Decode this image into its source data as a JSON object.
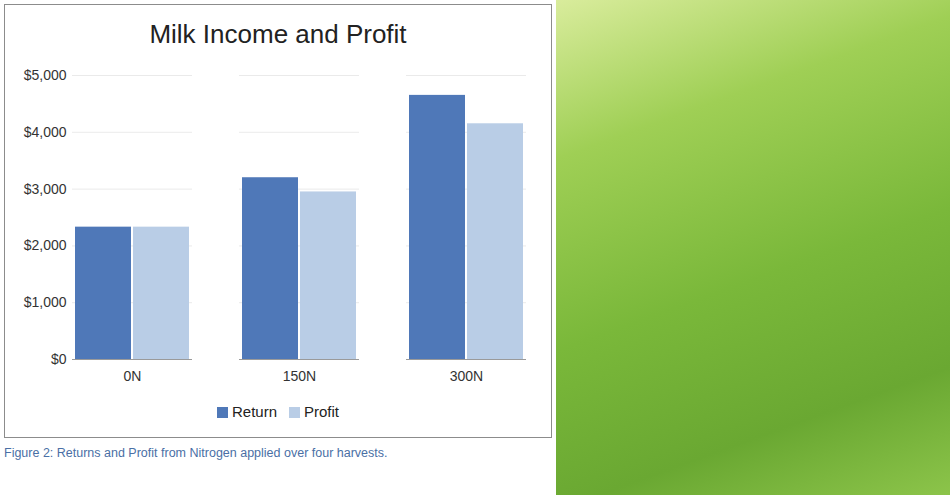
{
  "chart_data": {
    "type": "bar",
    "title": "Milk Income and Profit",
    "categories": [
      "0N",
      "150N",
      "300N"
    ],
    "series": [
      {
        "name": "Return",
        "color": "#4f78b8",
        "values": [
          2330,
          3200,
          4650
        ]
      },
      {
        "name": "Profit",
        "color": "#b9cde6",
        "values": [
          2330,
          2950,
          4150
        ]
      }
    ],
    "ylim": [
      0,
      5000
    ],
    "yticks": [
      {
        "value": 0,
        "label": "$0"
      },
      {
        "value": 1000,
        "label": "$1,000"
      },
      {
        "value": 2000,
        "label": "$2,000"
      },
      {
        "value": 3000,
        "label": "$3,000"
      },
      {
        "value": 4000,
        "label": "$4,000"
      },
      {
        "value": 5000,
        "label": "$5,000"
      }
    ],
    "grid": true,
    "legend": "bottom",
    "caption": "Figure 2: Returns and Profit from Nitrogen applied over four harvests."
  }
}
